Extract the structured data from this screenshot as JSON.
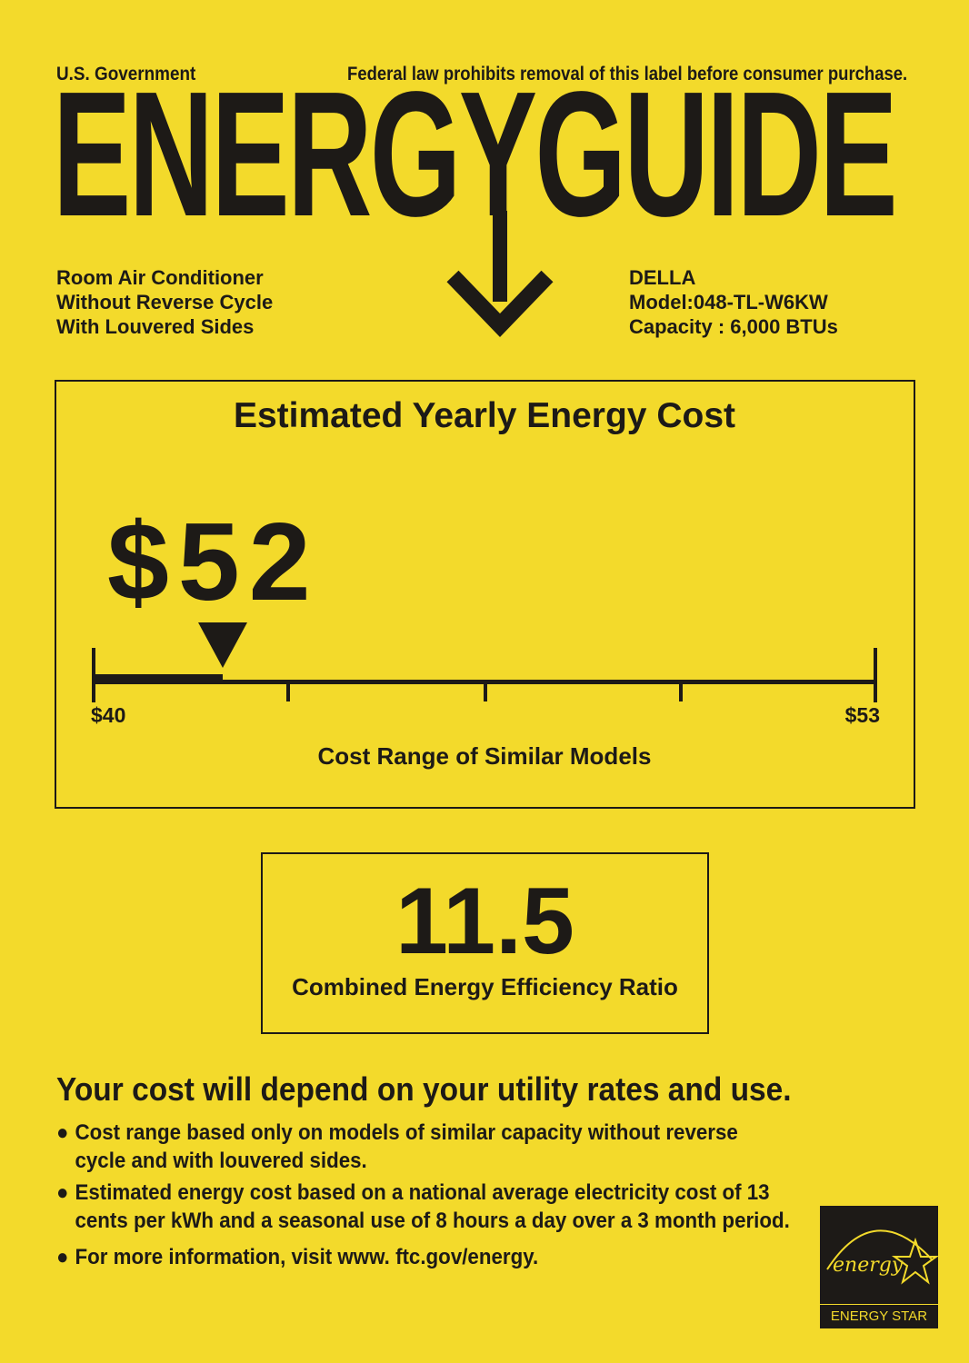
{
  "header": {
    "government": "U.S. Government",
    "notice": "Federal law prohibits removal of this label before consumer purchase.",
    "title": "ENERGYGUIDE"
  },
  "product": {
    "lines": [
      "Room Air Conditioner",
      "Without Reverse Cycle",
      "With Louvered Sides"
    ]
  },
  "manufacturer": {
    "brand": "DELLA",
    "model": "Model:048-TL-W6KW",
    "capacity": "Capacity : 6,000 BTUs"
  },
  "cost": {
    "title": "Estimated Yearly Energy Cost",
    "value": "$52",
    "range_min": "$40",
    "range_max": "$53",
    "range_label": "Cost Range of Similar Models"
  },
  "efficiency": {
    "value": "11.5",
    "label": "Combined Energy Efficiency Ratio"
  },
  "footer": {
    "headline": "Your cost will depend on your utility rates and use.",
    "bullets": [
      [
        "Cost range based only on models of similar capacity without reverse",
        "cycle and with louvered sides."
      ],
      [
        "Estimated energy cost based on a national average electricity cost of 13",
        "cents per kWh and a seasonal use of 8 hours a day over a 3 month period."
      ],
      [
        "For more information, visit www. ftc.gov/energy."
      ]
    ],
    "bullet_char": "●"
  },
  "energy_star": {
    "script": "energy",
    "label": "ENERGY STAR"
  },
  "colors": {
    "background": "#f3da2b",
    "ink": "#1d1a17"
  }
}
